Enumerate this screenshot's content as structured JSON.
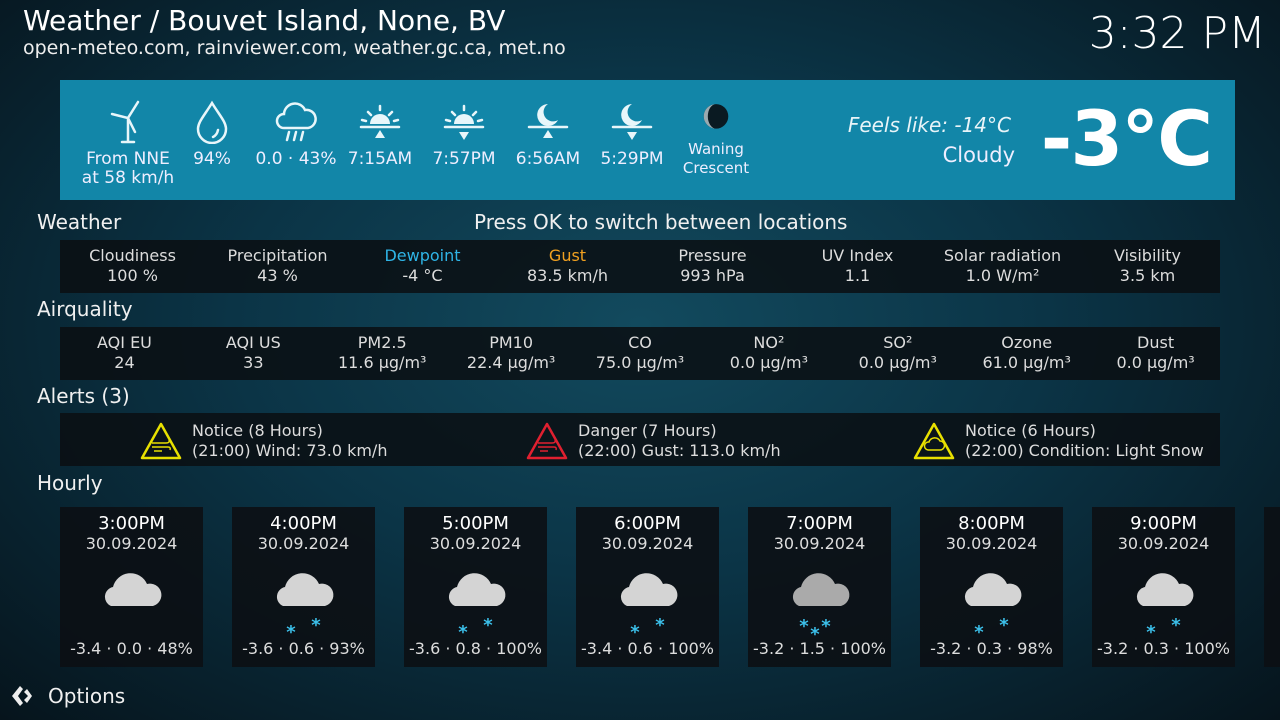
{
  "header": {
    "title": "Weather / Bouvet Island, None, BV",
    "sources": "open-meteo.com, rainviewer.com, weather.gc.ca, met.no",
    "clock": "3:32 PM"
  },
  "current": {
    "items": [
      {
        "icon": "wind-turbine-icon",
        "line1": "From NNE",
        "line2": "at 58 km/h"
      },
      {
        "icon": "humidity-drop-icon",
        "line1": "94%",
        "line2": ""
      },
      {
        "icon": "rain-cloud-icon",
        "line1": "0.0 · 43%",
        "line2": ""
      },
      {
        "icon": "sunrise-icon",
        "line1": "7:15AM",
        "line2": ""
      },
      {
        "icon": "sunset-icon",
        "line1": "7:57PM",
        "line2": ""
      },
      {
        "icon": "moonrise-icon",
        "line1": "6:56AM",
        "line2": ""
      },
      {
        "icon": "moonset-icon",
        "line1": "5:29PM",
        "line2": ""
      },
      {
        "icon": "moon-phase-icon",
        "line1": "Waning",
        "line2": "Crescent"
      }
    ],
    "feels_like": "Feels like: -14°C",
    "condition": "Cloudy",
    "temperature": "-3°C",
    "banner_color": "#1286a8"
  },
  "hint": "Press OK to switch between locations",
  "weather": {
    "title": "Weather",
    "items": [
      {
        "label": "Cloudiness",
        "value": "100 %"
      },
      {
        "label": "Precipitation",
        "value": "43 %"
      },
      {
        "label": "Dewpoint",
        "value": "-4 °C",
        "color": "#2fb4e6"
      },
      {
        "label": "Gust",
        "value": "83.5 km/h",
        "color": "#f0a020"
      },
      {
        "label": "Pressure",
        "value": "993 hPa"
      },
      {
        "label": "UV Index",
        "value": "1.1"
      },
      {
        "label": "Solar radiation",
        "value": "1.0 W/m²"
      },
      {
        "label": "Visibility",
        "value": "3.5 km"
      }
    ]
  },
  "airquality": {
    "title": "Airquality",
    "items": [
      {
        "label": "AQI EU",
        "value": "24"
      },
      {
        "label": "AQI US",
        "value": "33"
      },
      {
        "label": "PM2.5",
        "value": "11.6 µg/m³"
      },
      {
        "label": "PM10",
        "value": "22.4 µg/m³"
      },
      {
        "label": "CO",
        "value": "75.0 µg/m³"
      },
      {
        "label": "NO²",
        "value": "0.0 µg/m³"
      },
      {
        "label": "SO²",
        "value": "0.0 µg/m³"
      },
      {
        "label": "Ozone",
        "value": "61.0 µg/m³"
      },
      {
        "label": "Dust",
        "value": "0.0 µg/m³"
      }
    ]
  },
  "alerts": {
    "title": "Alerts (3)",
    "items": [
      {
        "level": "Notice (8 Hours)",
        "text": "(21:00) Wind: 73.0 km/h",
        "color": "#e8e000",
        "icon": "wind-warning-icon"
      },
      {
        "level": "Danger (7 Hours)",
        "text": "(22:00) Gust: 113.0 km/h",
        "color": "#e02030",
        "icon": "wind-warning-icon"
      },
      {
        "level": "Notice (6 Hours)",
        "text": "(22:00) Condition: Light Snow",
        "color": "#e8e000",
        "icon": "snow-warning-icon"
      }
    ]
  },
  "hourly": {
    "title": "Hourly",
    "items": [
      {
        "time": "3:00PM",
        "date": "30.09.2024",
        "values": "-3.4 · 0.0 · 48%",
        "icon": "cloud-icon"
      },
      {
        "time": "4:00PM",
        "date": "30.09.2024",
        "values": "-3.6 · 0.6 · 93%",
        "icon": "cloud-snow-icon"
      },
      {
        "time": "5:00PM",
        "date": "30.09.2024",
        "values": "-3.6 · 0.8 · 100%",
        "icon": "cloud-snow-icon"
      },
      {
        "time": "6:00PM",
        "date": "30.09.2024",
        "values": "-3.4 · 0.6 · 100%",
        "icon": "cloud-snow-icon"
      },
      {
        "time": "7:00PM",
        "date": "30.09.2024",
        "values": "-3.2 · 1.5 · 100%",
        "icon": "cloud-heavy-snow-icon"
      },
      {
        "time": "8:00PM",
        "date": "30.09.2024",
        "values": "-3.2 · 0.3 · 98%",
        "icon": "cloud-snow-icon"
      },
      {
        "time": "9:00PM",
        "date": "30.09.2024",
        "values": "-3.2 · 0.3 · 100%",
        "icon": "cloud-snow-icon"
      }
    ]
  },
  "footer": {
    "options": "Options"
  }
}
